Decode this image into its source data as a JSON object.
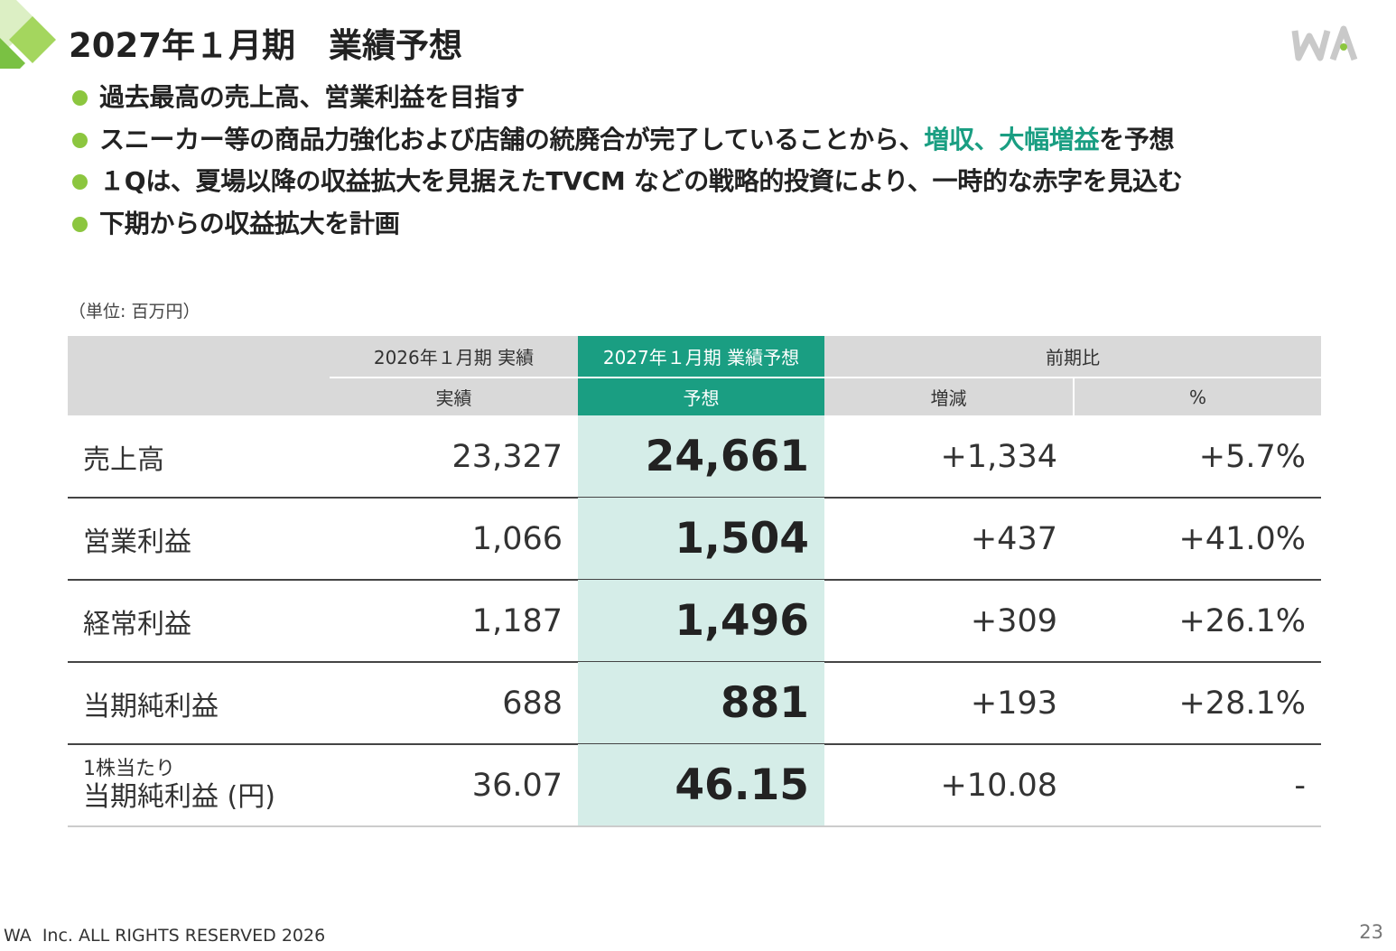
{
  "header": {
    "title": "2027年１月期　業績予想"
  },
  "bullets": [
    {
      "parts": [
        {
          "text": "過去最高の売上高、営業利益を目指す"
        }
      ]
    },
    {
      "parts": [
        {
          "text": "スニーカー等の商品力強化および店舗の統廃合が完了していることから、"
        },
        {
          "text": "増収、大幅増益",
          "color": "#1a9e82"
        },
        {
          "text": "を予想"
        }
      ]
    },
    {
      "parts": [
        {
          "text": "１Qは、夏場以降の収益拡大を見据えたTVCM などの戦略的投資により、一時的な赤字を見込む"
        }
      ]
    },
    {
      "parts": [
        {
          "text": "下期からの収益拡大を計画"
        }
      ]
    }
  ],
  "table": {
    "unit": "（単位: 百万円）",
    "group_headers": [
      "2026年１月期  実績",
      "2027年１月期  業績予想",
      "前期比"
    ],
    "sub_headers": [
      "実績",
      "予想",
      "増減",
      "%"
    ],
    "rows": [
      {
        "label": "売上高",
        "values": [
          "23,327",
          "24,661",
          "+1,334",
          "+5.7%"
        ]
      },
      {
        "label": "営業利益",
        "values": [
          "1,066",
          "1,504",
          "+437",
          "+41.0%"
        ]
      },
      {
        "label": "経常利益",
        "values": [
          "1,187",
          "1,496",
          "+309",
          "+26.1%"
        ]
      },
      {
        "label": "当期純利益",
        "values": [
          "688",
          "881",
          "+193",
          "+28.1%"
        ]
      },
      {
        "note": "1株当たり",
        "label": "当期純利益 (円)",
        "values": [
          "36.07",
          "46.15",
          "+10.08",
          "-"
        ]
      }
    ]
  },
  "footer": {
    "copyright": "WA  Inc. ALL RIGHTS RESERVED 2026",
    "page": "23"
  }
}
